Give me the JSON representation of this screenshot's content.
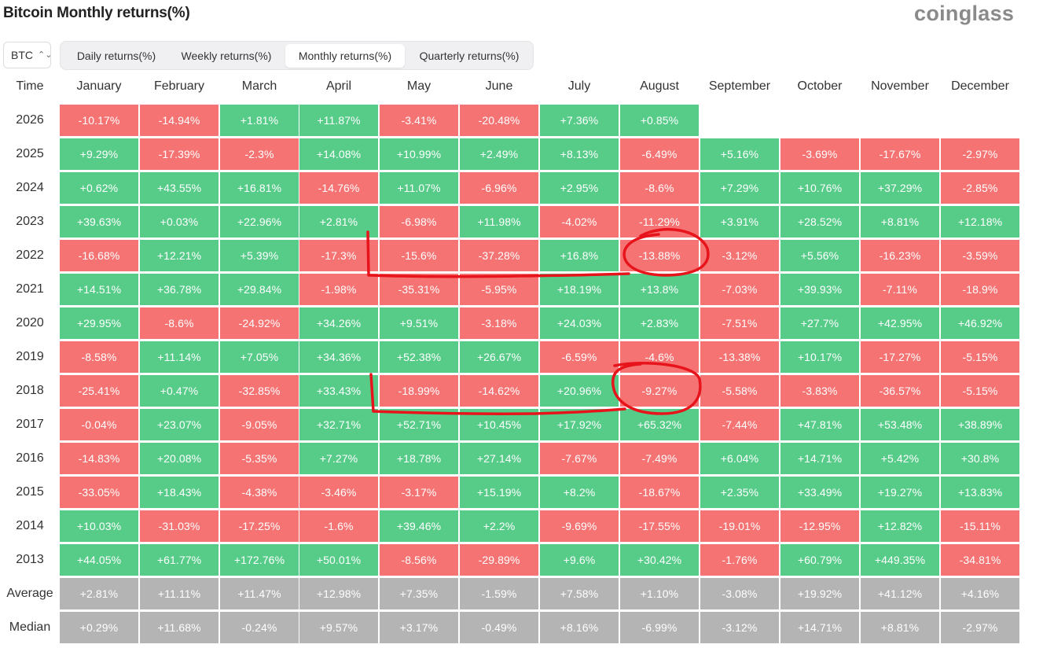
{
  "header": {
    "title": "Bitcoin Monthly returns(%)",
    "brand": "coinglass"
  },
  "coin_select": {
    "value": "BTC",
    "icon": "chevron-up-down-icon"
  },
  "tabs": [
    {
      "label": "Daily returns(%)",
      "active": false
    },
    {
      "label": "Weekly returns(%)",
      "active": false
    },
    {
      "label": "Monthly returns(%)",
      "active": true
    },
    {
      "label": "Quarterly returns(%)",
      "active": false
    }
  ],
  "table": {
    "time_header": "Time",
    "months": [
      "January",
      "February",
      "March",
      "April",
      "May",
      "June",
      "July",
      "August",
      "September",
      "October",
      "November",
      "December"
    ],
    "rows": [
      {
        "year": "2026",
        "values": [
          "-10.17%",
          "-14.94%",
          "+1.81%",
          "+11.87%",
          "-3.41%",
          "-20.48%",
          "+7.36%",
          "+0.85%"
        ]
      },
      {
        "year": "2025",
        "values": [
          "+9.29%",
          "-17.39%",
          "-2.3%",
          "+14.08%",
          "+10.99%",
          "+2.49%",
          "+8.13%",
          "-6.49%",
          "+5.16%",
          "-3.69%",
          "-17.67%",
          "-2.97%"
        ]
      },
      {
        "year": "2024",
        "values": [
          "+0.62%",
          "+43.55%",
          "+16.81%",
          "-14.76%",
          "+11.07%",
          "-6.96%",
          "+2.95%",
          "-8.6%",
          "+7.29%",
          "+10.76%",
          "+37.29%",
          "-2.85%"
        ]
      },
      {
        "year": "2023",
        "values": [
          "+39.63%",
          "+0.03%",
          "+22.96%",
          "+2.81%",
          "-6.98%",
          "+11.98%",
          "-4.02%",
          "-11.29%",
          "+3.91%",
          "+28.52%",
          "+8.81%",
          "+12.18%"
        ]
      },
      {
        "year": "2022",
        "values": [
          "-16.68%",
          "+12.21%",
          "+5.39%",
          "-17.3%",
          "-15.6%",
          "-37.28%",
          "+16.8%",
          "-13.88%",
          "-3.12%",
          "+5.56%",
          "-16.23%",
          "-3.59%"
        ]
      },
      {
        "year": "2021",
        "values": [
          "+14.51%",
          "+36.78%",
          "+29.84%",
          "-1.98%",
          "-35.31%",
          "-5.95%",
          "+18.19%",
          "+13.8%",
          "-7.03%",
          "+39.93%",
          "-7.11%",
          "-18.9%"
        ]
      },
      {
        "year": "2020",
        "values": [
          "+29.95%",
          "-8.6%",
          "-24.92%",
          "+34.26%",
          "+9.51%",
          "-3.18%",
          "+24.03%",
          "+2.83%",
          "-7.51%",
          "+27.7%",
          "+42.95%",
          "+46.92%"
        ]
      },
      {
        "year": "2019",
        "values": [
          "-8.58%",
          "+11.14%",
          "+7.05%",
          "+34.36%",
          "+52.38%",
          "+26.67%",
          "-6.59%",
          "-4.6%",
          "-13.38%",
          "+10.17%",
          "-17.27%",
          "-5.15%"
        ]
      },
      {
        "year": "2018",
        "values": [
          "-25.41%",
          "+0.47%",
          "-32.85%",
          "+33.43%",
          "-18.99%",
          "-14.62%",
          "+20.96%",
          "-9.27%",
          "-5.58%",
          "-3.83%",
          "-36.57%",
          "-5.15%"
        ]
      },
      {
        "year": "2017",
        "values": [
          "-0.04%",
          "+23.07%",
          "-9.05%",
          "+32.71%",
          "+52.71%",
          "+10.45%",
          "+17.92%",
          "+65.32%",
          "-7.44%",
          "+47.81%",
          "+53.48%",
          "+38.89%"
        ]
      },
      {
        "year": "2016",
        "values": [
          "-14.83%",
          "+20.08%",
          "-5.35%",
          "+7.27%",
          "+18.78%",
          "+27.14%",
          "-7.67%",
          "-7.49%",
          "+6.04%",
          "+14.71%",
          "+5.42%",
          "+30.8%"
        ]
      },
      {
        "year": "2015",
        "values": [
          "-33.05%",
          "+18.43%",
          "-4.38%",
          "-3.46%",
          "-3.17%",
          "+15.19%",
          "+8.2%",
          "-18.67%",
          "+2.35%",
          "+33.49%",
          "+19.27%",
          "+13.83%"
        ]
      },
      {
        "year": "2014",
        "values": [
          "+10.03%",
          "-31.03%",
          "-17.25%",
          "-1.6%",
          "+39.46%",
          "+2.2%",
          "-9.69%",
          "-17.55%",
          "-19.01%",
          "-12.95%",
          "+12.82%",
          "-15.11%"
        ]
      },
      {
        "year": "2013",
        "values": [
          "+44.05%",
          "+61.77%",
          "+172.76%",
          "+50.01%",
          "-8.56%",
          "-29.89%",
          "+9.6%",
          "+30.42%",
          "-1.76%",
          "+60.79%",
          "+449.35%",
          "-34.81%"
        ]
      }
    ],
    "summary": [
      {
        "label": "Average",
        "values": [
          "+2.81%",
          "+11.11%",
          "+11.47%",
          "+12.98%",
          "+7.35%",
          "-1.59%",
          "+7.58%",
          "+1.10%",
          "-3.08%",
          "+19.92%",
          "+41.12%",
          "+4.16%"
        ]
      },
      {
        "label": "Median",
        "values": [
          "+0.29%",
          "+11.68%",
          "-0.24%",
          "+9.57%",
          "+3.17%",
          "-0.49%",
          "+8.16%",
          "-6.99%",
          "-3.12%",
          "+14.71%",
          "+8.81%",
          "-2.97%"
        ]
      }
    ]
  },
  "colors": {
    "positive": "#57cc89",
    "negative": "#f57373",
    "summary": "#b4b4b4",
    "annotation": "#e8141c"
  }
}
